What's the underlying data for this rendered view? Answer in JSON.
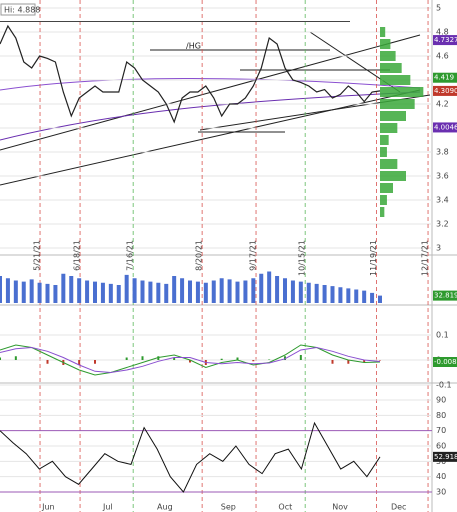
{
  "chart_data": [
    {
      "type": "line",
      "name": "/HG",
      "color": "#222222",
      "values": [
        4.7,
        4.85,
        4.75,
        4.55,
        4.5,
        4.6,
        4.58,
        4.55,
        4.3,
        4.1,
        4.25,
        4.3,
        4.35,
        4.3,
        4.3,
        4.3,
        4.55,
        4.5,
        4.4,
        4.35,
        4.3,
        4.2,
        4.05,
        4.25,
        4.3,
        4.3,
        4.35,
        4.25,
        4.1,
        4.2,
        4.2,
        4.25,
        4.35,
        4.5,
        4.75,
        4.7,
        4.5,
        4.4,
        4.38,
        4.35,
        4.3,
        4.32,
        4.25,
        4.28,
        4.35,
        4.3,
        4.22,
        4.3,
        4.309
      ],
      "xlim": [
        0,
        54.5
      ],
      "ylim": [
        3,
        5
      ],
      "yticks": [
        5,
        4.8,
        4.6,
        4.4,
        4.2,
        4,
        3.8,
        3.6,
        3.4,
        3.2,
        3
      ],
      "xticks": [
        {
          "value": 5.05,
          "label": "5/21/21"
        },
        {
          "value": 10.1,
          "label": "6/18/21"
        },
        {
          "value": 16.8,
          "label": "7/16/21"
        },
        {
          "value": 25.5,
          "label": "8/20/21"
        },
        {
          "value": 32.3,
          "label": "9/17/21"
        },
        {
          "value": 38.5,
          "label": "10/15/21"
        },
        {
          "value": 47.5,
          "label": "11/19/21"
        },
        {
          "value": 54,
          "label": "12/17/21"
        }
      ],
      "hi": {
        "value": 4.888,
        "label": "Hi: 4.888"
      },
      "price_labels": [
        {
          "value": 4.7327,
          "label": "4.7327",
          "color": "#6a2fb0"
        },
        {
          "value": 4.419,
          "label": "4.419",
          "color": "#2e9a2e"
        },
        {
          "value": 4.309,
          "label": "4.3090",
          "color": "#c0392b"
        },
        {
          "value": 4.0046,
          "label": "4.0046",
          "color": "#6a2fb0"
        }
      ],
      "profile": {
        "color": "#3aa83a",
        "levels": [
          3.3,
          3.4,
          3.5,
          3.6,
          3.7,
          3.8,
          3.9,
          4.0,
          4.1,
          4.2,
          4.3,
          4.4,
          4.5,
          4.6,
          4.7,
          4.8
        ],
        "values": [
          5,
          8,
          15,
          30,
          20,
          8,
          10,
          20,
          30,
          40,
          50,
          35,
          25,
          18,
          12,
          6
        ],
        "xlim": [
          0,
          60
        ]
      }
    },
    {
      "type": "bar",
      "color": "#4a6fd0",
      "ylim": [
        0,
        200
      ],
      "values": [
        120,
        110,
        100,
        95,
        105,
        90,
        85,
        80,
        130,
        120,
        110,
        100,
        95,
        90,
        85,
        80,
        125,
        110,
        100,
        95,
        90,
        85,
        120,
        110,
        100,
        95,
        90,
        100,
        110,
        105,
        95,
        100,
        110,
        130,
        140,
        120,
        110,
        100,
        95,
        90,
        85,
        80,
        75,
        70,
        65,
        60,
        55,
        45,
        32.819
      ],
      "last": 32.819
    },
    {
      "type": "line",
      "ylim": [
        -0.1,
        0.1
      ],
      "yticks": [
        0.1,
        0,
        -0.1
      ],
      "series": [
        {
          "name": "MACD",
          "color": "#2e9a2e",
          "values": [
            0.04,
            0.06,
            0.05,
            0.02,
            -0.01,
            -0.04,
            -0.06,
            -0.05,
            -0.03,
            -0.01,
            0.01,
            0.02,
            0.0,
            -0.03,
            -0.01,
            0.0,
            -0.02,
            -0.01,
            0.02,
            0.06,
            0.05,
            0.02,
            0.0,
            -0.01,
            -0.008
          ]
        },
        {
          "name": "Signal",
          "color": "#8a4fd0",
          "values": [
            0.03,
            0.045,
            0.05,
            0.035,
            0.01,
            -0.02,
            -0.045,
            -0.05,
            -0.04,
            -0.025,
            -0.005,
            0.01,
            0.01,
            -0.01,
            -0.015,
            -0.01,
            -0.015,
            -0.012,
            0.005,
            0.04,
            0.05,
            0.035,
            0.015,
            0.0,
            -0.006
          ]
        }
      ],
      "last": -0.008
    },
    {
      "type": "line",
      "color": "#111111",
      "ylim": [
        30,
        90
      ],
      "yticks": [
        90,
        80,
        70,
        60,
        50,
        40,
        30
      ],
      "values": [
        70,
        62,
        55,
        45,
        50,
        40,
        35,
        45,
        55,
        50,
        48,
        72,
        58,
        40,
        30,
        48,
        55,
        50,
        60,
        48,
        42,
        55,
        58,
        45,
        75,
        60,
        45,
        50,
        40,
        52.918
      ]
    }
  ],
  "months": [
    {
      "value": 6.1,
      "label": "Jun"
    },
    {
      "value": 13.6,
      "label": "Jul"
    },
    {
      "value": 20.8,
      "label": "Aug"
    },
    {
      "value": 28.8,
      "label": "Sep"
    },
    {
      "value": 36,
      "label": "Oct"
    },
    {
      "value": 42.9,
      "label": "Nov"
    },
    {
      "value": 50.3,
      "label": "Dec"
    }
  ]
}
